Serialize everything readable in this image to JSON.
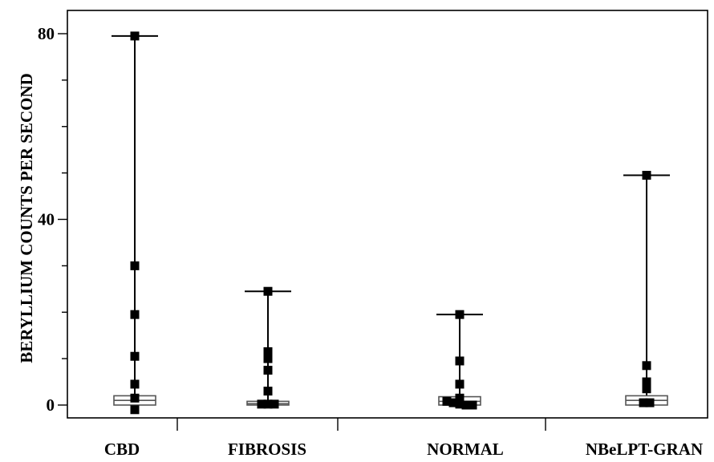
{
  "chart_data": {
    "type": "scatter",
    "ylabel": "BERYLLIUM COUNTS PER SECOND",
    "xlabel": "",
    "ylim": [
      -6,
      86
    ],
    "yticks": [
      0,
      40,
      80
    ],
    "categories": [
      "CBD",
      "FIBROSIS",
      "NORMAL",
      "NBeLPT-GRAN"
    ],
    "groups": [
      {
        "category": "CBD",
        "points": [
          79.5,
          30,
          19.5,
          10.5,
          4.5,
          1.5,
          -1
        ],
        "box": {
          "q1": 0,
          "median": 1,
          "q3": 2
        },
        "max": 79.5
      },
      {
        "category": "FIBROSIS",
        "points": [
          24.5,
          11.5,
          10,
          7.5,
          3,
          0.2,
          0.2,
          0.2
        ],
        "box": {
          "q1": 0,
          "median": 0.3,
          "q3": 0.8
        },
        "max": 24.5
      },
      {
        "category": "NORMAL",
        "points": [
          19.5,
          9.5,
          4.5,
          1.5,
          0.8,
          0.5,
          0.2,
          0,
          0
        ],
        "box": {
          "q1": 0,
          "median": 0.8,
          "q3": 1.8
        },
        "max": 19.5
      },
      {
        "category": "NBeLPT-GRAN",
        "points": [
          49.5,
          8.5,
          5,
          3.5,
          0.5,
          0.5
        ],
        "box": {
          "q1": 0,
          "median": 1,
          "q3": 2
        },
        "max": 49.5
      }
    ],
    "grid": false,
    "legend": "none"
  }
}
